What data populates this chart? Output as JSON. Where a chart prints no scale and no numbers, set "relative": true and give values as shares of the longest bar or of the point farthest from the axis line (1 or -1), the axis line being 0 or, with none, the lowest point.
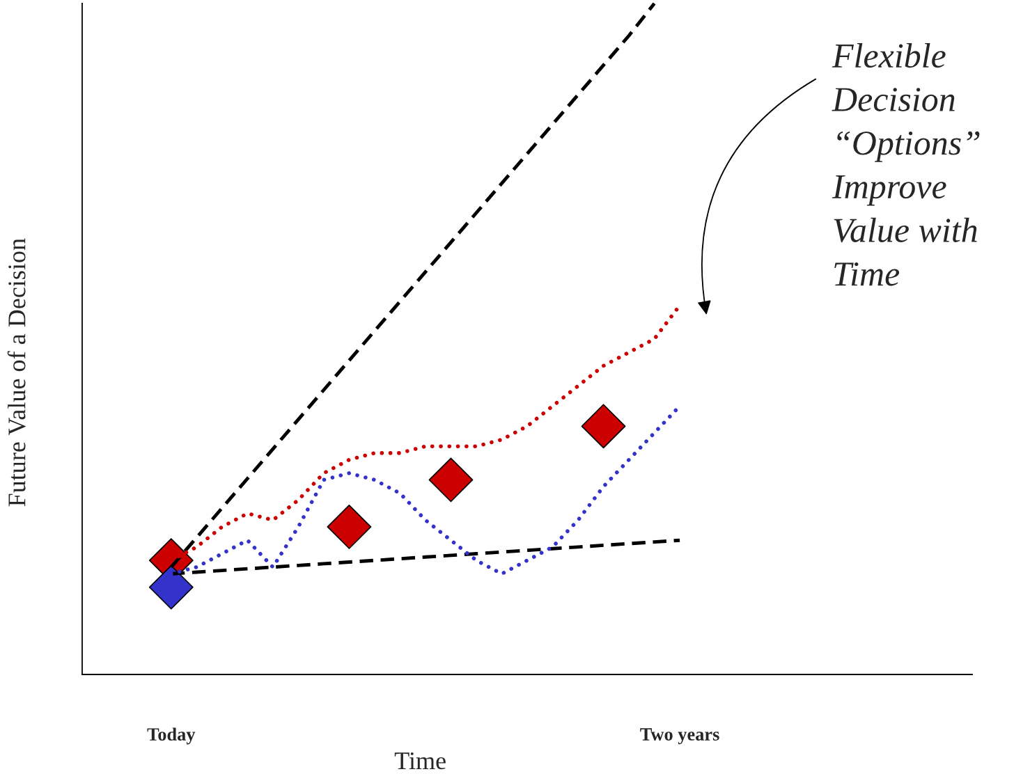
{
  "chart_data": {
    "type": "line",
    "relative": true,
    "xlabel": "Time",
    "ylabel": "Future Value of a Decision",
    "tick_labels": "x",
    "grid": false,
    "categories": [
      null,
      null,
      null,
      "Today",
      null,
      null,
      null,
      null,
      null,
      null,
      null,
      null,
      null,
      null,
      null,
      null,
      null,
      null,
      null,
      null,
      null,
      null,
      null,
      "Two years",
      null,
      null,
      null,
      null,
      null,
      null,
      null,
      null,
      null,
      null,
      null
    ],
    "series": [
      {
        "color": "#000000",
        "line_style": "dashed",
        "marker": "none",
        "values": [
          null,
          null,
          null,
          0.16,
          0.204,
          0.248,
          0.292,
          0.336,
          0.38,
          0.424,
          0.468,
          0.512,
          0.556,
          0.6,
          0.644,
          0.688,
          0.732,
          0.776,
          0.82,
          0.864,
          0.908,
          0.952,
          1.0,
          null,
          null,
          null,
          null,
          null,
          null,
          null,
          null,
          null,
          null,
          null,
          null
        ]
      },
      {
        "color": "#000000",
        "line_style": "dashed",
        "marker": "none",
        "values": [
          null,
          null,
          null,
          0.15,
          0.1525,
          0.155,
          0.1575,
          0.16,
          0.1625,
          0.165,
          0.1675,
          0.17,
          0.1725,
          0.175,
          0.1775,
          0.18,
          0.1825,
          0.185,
          0.1875,
          0.19,
          0.1925,
          0.195,
          0.1975,
          0.2,
          null,
          null,
          null,
          null,
          null,
          null,
          null,
          null,
          null,
          null,
          null
        ]
      },
      {
        "color": "#cc0000",
        "line_style": "dotted",
        "marker": "none",
        "values": [
          null,
          null,
          null,
          0.17,
          0.19,
          0.22,
          0.24,
          0.23,
          0.26,
          0.3,
          0.32,
          0.33,
          0.33,
          0.34,
          0.34,
          0.34,
          0.35,
          0.37,
          0.4,
          0.43,
          0.46,
          0.48,
          0.5,
          0.55,
          null,
          null,
          null,
          null,
          null,
          null,
          null,
          null,
          null,
          null,
          null
        ]
      },
      {
        "color": "#3333cc",
        "line_style": "dotted",
        "marker": "none",
        "values": [
          null,
          null,
          null,
          0.15,
          0.16,
          0.18,
          0.2,
          0.16,
          0.22,
          0.29,
          0.3,
          0.29,
          0.27,
          0.23,
          0.2,
          0.17,
          0.15,
          0.17,
          0.19,
          0.23,
          0.28,
          0.32,
          0.36,
          0.4,
          null,
          null,
          null,
          null,
          null,
          null,
          null,
          null,
          null,
          null,
          null
        ]
      },
      {
        "type": "scatter",
        "color": "#cc0000",
        "marker": "diamond",
        "values": [
          null,
          null,
          null,
          0.17,
          null,
          null,
          null,
          null,
          null,
          null,
          0.22,
          null,
          null,
          null,
          0.29,
          null,
          null,
          null,
          null,
          null,
          0.37,
          null,
          null,
          null,
          null,
          null,
          null,
          null,
          null,
          null,
          null,
          null,
          null,
          null,
          null
        ]
      },
      {
        "type": "scatter",
        "color": "#3333cc",
        "marker": "diamond",
        "values": [
          null,
          null,
          null,
          0.13,
          null,
          null,
          null,
          null,
          null,
          null,
          null,
          null,
          null,
          null,
          null,
          null,
          null,
          null,
          null,
          null,
          null,
          null,
          null,
          null,
          null,
          null,
          null,
          null,
          null,
          null,
          null,
          null,
          null,
          null,
          null
        ]
      }
    ],
    "annotations": [
      "Flexible\nDecision\n“Options”\nImprove\nValue with\nTime"
    ]
  }
}
